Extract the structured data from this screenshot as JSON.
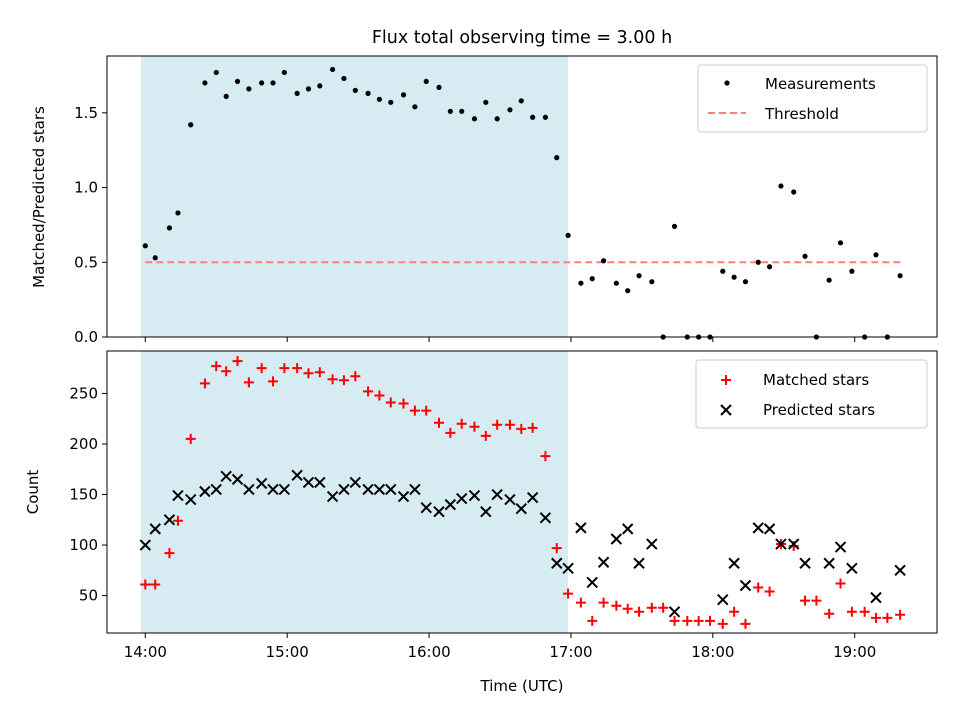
{
  "figure": {
    "title": "Flux total observing time = 3.00 h"
  },
  "chart_data": [
    {
      "type": "scatter",
      "ylabel": "Matched/Predicted stars",
      "xlim": [
        13.73,
        19.58
      ],
      "ylim": [
        0,
        1.88
      ],
      "yticks": [
        0,
        0.5,
        1.0,
        1.5
      ],
      "ytick_labels": [
        "0.0",
        "0.5",
        "1.0",
        "1.5"
      ],
      "xticks": [
        14,
        15,
        16,
        17,
        18,
        19
      ],
      "grid": false,
      "legend_position": "top-right",
      "shaded_region": {
        "x0": 13.97,
        "x1": 16.98,
        "color": "#add8e6"
      },
      "threshold": {
        "name": "Threshold",
        "value": 0.5,
        "x0": 14.0,
        "x1": 19.33,
        "color": "#ff7f7f",
        "style": "dashed"
      },
      "series": [
        {
          "name": "Measurements",
          "marker": "dot",
          "color": "#000000",
          "x": [
            14.0,
            14.07,
            14.17,
            14.23,
            14.32,
            14.42,
            14.5,
            14.57,
            14.65,
            14.73,
            14.82,
            14.9,
            14.98,
            15.07,
            15.15,
            15.23,
            15.32,
            15.4,
            15.48,
            15.57,
            15.65,
            15.73,
            15.82,
            15.9,
            15.98,
            16.07,
            16.15,
            16.23,
            16.32,
            16.4,
            16.48,
            16.57,
            16.65,
            16.73,
            16.82,
            16.9,
            16.98,
            17.07,
            17.15,
            17.23,
            17.32,
            17.4,
            17.48,
            17.57,
            17.65,
            17.73,
            17.82,
            17.9,
            17.98,
            18.07,
            18.15,
            18.23,
            18.32,
            18.4,
            18.48,
            18.57,
            18.65,
            18.73,
            18.82,
            18.9,
            18.98,
            19.07,
            19.15,
            19.23,
            19.32
          ],
          "y": [
            0.61,
            0.53,
            0.73,
            0.83,
            1.42,
            1.7,
            1.77,
            1.61,
            1.71,
            1.66,
            1.7,
            1.7,
            1.77,
            1.63,
            1.66,
            1.68,
            1.79,
            1.73,
            1.65,
            1.63,
            1.59,
            1.57,
            1.62,
            1.54,
            1.71,
            1.67,
            1.51,
            1.51,
            1.46,
            1.57,
            1.46,
            1.52,
            1.58,
            1.47,
            1.47,
            1.2,
            0.68,
            0.36,
            0.39,
            0.51,
            0.36,
            0.31,
            0.41,
            0.37,
            0.0,
            0.74,
            0.0,
            0.0,
            0.0,
            0.44,
            0.4,
            0.37,
            0.5,
            0.47,
            1.01,
            0.97,
            0.54,
            0.0,
            0.38,
            0.63,
            0.44,
            0.0,
            0.55,
            0.0,
            0.41
          ]
        }
      ]
    },
    {
      "type": "scatter",
      "xlabel": "Time (UTC)",
      "ylabel": "Count",
      "xlim": [
        13.73,
        19.58
      ],
      "ylim": [
        13,
        292
      ],
      "yticks": [
        50,
        100,
        150,
        200,
        250
      ],
      "xticks": [
        14,
        15,
        16,
        17,
        18,
        19
      ],
      "xtick_labels": [
        "14:00",
        "15:00",
        "16:00",
        "17:00",
        "18:00",
        "19:00"
      ],
      "grid": false,
      "legend_position": "top-right",
      "shaded_region": {
        "x0": 13.97,
        "x1": 16.98,
        "color": "#add8e6"
      },
      "series": [
        {
          "name": "Matched stars",
          "marker": "plus",
          "color": "#ff0000",
          "x": [
            14.0,
            14.07,
            14.17,
            14.23,
            14.32,
            14.42,
            14.5,
            14.57,
            14.65,
            14.73,
            14.82,
            14.9,
            14.98,
            15.07,
            15.15,
            15.23,
            15.32,
            15.4,
            15.48,
            15.57,
            15.65,
            15.73,
            15.82,
            15.9,
            15.98,
            16.07,
            16.15,
            16.23,
            16.32,
            16.4,
            16.48,
            16.57,
            16.65,
            16.73,
            16.82,
            16.9,
            16.98,
            17.07,
            17.15,
            17.23,
            17.32,
            17.4,
            17.48,
            17.57,
            17.65,
            17.73,
            17.82,
            17.9,
            17.98,
            18.07,
            18.15,
            18.23,
            18.32,
            18.4,
            18.48,
            18.57,
            18.65,
            18.73,
            18.82,
            18.9,
            18.98,
            19.07,
            19.15,
            19.23,
            19.32
          ],
          "y": [
            61,
            61,
            92,
            124,
            205,
            260,
            277,
            272,
            282,
            261,
            275,
            262,
            275,
            275,
            270,
            271,
            264,
            263,
            267,
            252,
            248,
            241,
            240,
            233,
            233,
            221,
            211,
            220,
            217,
            208,
            219,
            219,
            215,
            216,
            188,
            97,
            52,
            43,
            25,
            43,
            40,
            37,
            34,
            38,
            38,
            25,
            25,
            25,
            25,
            22,
            34,
            22,
            58,
            54,
            101,
            99,
            45,
            45,
            32,
            62,
            34,
            34,
            28,
            28,
            31
          ]
        },
        {
          "name": "Predicted stars",
          "marker": "x",
          "color": "#000000",
          "x": [
            14.0,
            14.07,
            14.17,
            14.23,
            14.32,
            14.42,
            14.5,
            14.57,
            14.65,
            14.73,
            14.82,
            14.9,
            14.98,
            15.07,
            15.15,
            15.23,
            15.32,
            15.4,
            15.48,
            15.57,
            15.65,
            15.73,
            15.82,
            15.9,
            15.98,
            16.07,
            16.15,
            16.23,
            16.32,
            16.4,
            16.48,
            16.57,
            16.65,
            16.73,
            16.82,
            16.9,
            16.98,
            17.07,
            17.15,
            17.23,
            17.32,
            17.4,
            17.48,
            17.57,
            17.73,
            18.07,
            18.15,
            18.23,
            18.32,
            18.4,
            18.48,
            18.57,
            18.65,
            18.82,
            18.9,
            18.98,
            19.15,
            19.32
          ],
          "y": [
            100,
            116,
            125,
            149,
            145,
            153,
            155,
            168,
            165,
            155,
            161,
            155,
            155,
            169,
            162,
            162,
            148,
            155,
            162,
            155,
            155,
            155,
            148,
            155,
            137,
            133,
            140,
            146,
            149,
            133,
            150,
            145,
            136,
            147,
            127,
            82,
            77,
            117,
            63,
            83,
            106,
            116,
            82,
            101,
            34,
            46,
            82,
            60,
            117,
            116,
            101,
            101,
            82,
            82,
            98,
            77,
            48,
            75
          ]
        }
      ]
    }
  ]
}
